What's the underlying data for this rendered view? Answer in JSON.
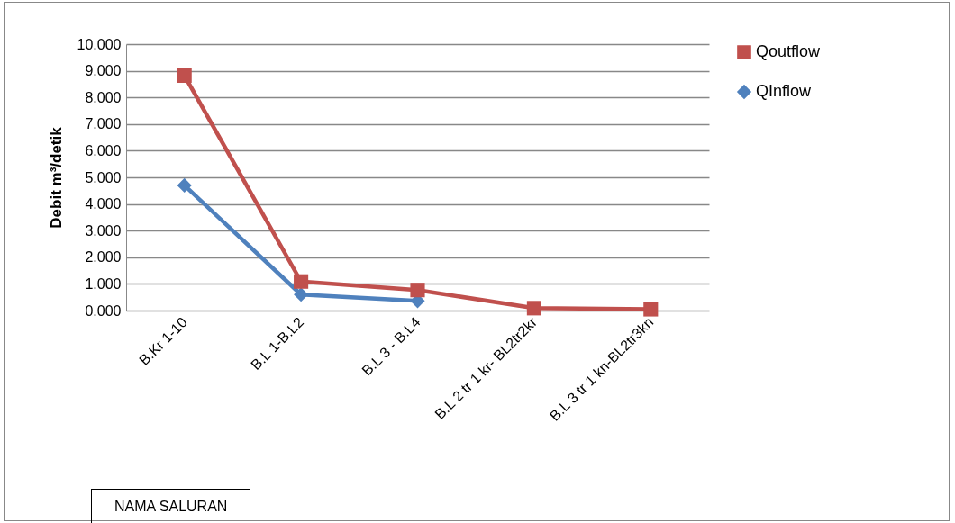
{
  "chart_data": {
    "type": "line",
    "annotations": [
      "NAMA SALURAN"
    ],
    "ylabel": "Debit m³/detik",
    "categories": [
      "B.Kr 1-10",
      "B.L 1-B.L2",
      "B.L 3 - B.L4",
      "B.L 2 tr 1 kr- BL2tr2kr",
      "B.L 3 tr 1 kn-BL2tr3kn"
    ],
    "series": [
      {
        "name": "Qoutflow",
        "color": "#c0504d",
        "marker": "square",
        "values": [
          8.82,
          1.09,
          0.77,
          0.09,
          0.05
        ]
      },
      {
        "name": "QInflow",
        "color": "#4f81bd",
        "marker": "diamond",
        "values": [
          4.7,
          0.6,
          0.36,
          null,
          null
        ]
      }
    ],
    "ylim": [
      0,
      10
    ],
    "yticks": [
      {
        "value": 0,
        "label": "0.000"
      },
      {
        "value": 1,
        "label": "1.000"
      },
      {
        "value": 2,
        "label": "2.000"
      },
      {
        "value": 3,
        "label": "3.000"
      },
      {
        "value": 4,
        "label": "4.000"
      },
      {
        "value": 5,
        "label": "5.000"
      },
      {
        "value": 6,
        "label": "6.000"
      },
      {
        "value": 7,
        "label": "7.000"
      },
      {
        "value": 8,
        "label": "8.000"
      },
      {
        "value": 9,
        "label": "9.000"
      },
      {
        "value": 10,
        "label": "10.000"
      }
    ],
    "grid": "y",
    "legend": "right",
    "line_style": "solid"
  }
}
